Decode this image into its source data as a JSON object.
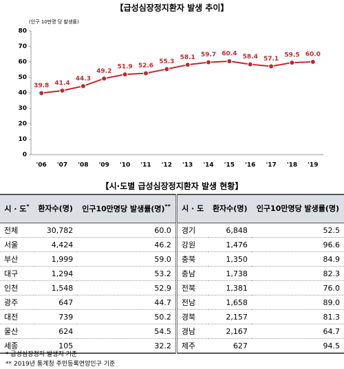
{
  "chart_data": {
    "type": "line",
    "title": "【급성심장정지환자 발생 추이】",
    "subtitle": "(인구 10만명 당 발생률)",
    "categories": [
      "'06",
      "'07",
      "'08",
      "'09",
      "'10",
      "'11",
      "'12",
      "'13",
      "'14",
      "'15",
      "'16",
      "'17",
      "'18",
      "'19"
    ],
    "values": [
      39.8,
      41.4,
      44.3,
      49.2,
      51.9,
      52.6,
      55.3,
      58.1,
      59.7,
      60.4,
      58.4,
      57.1,
      59.5,
      60.0
    ],
    "value_labels": [
      "39.8",
      "41.4",
      "44.3",
      "49.2",
      "51.9",
      "52.6",
      "55.3",
      "58.1",
      "59.7",
      "60.4",
      "58.4",
      "57.1",
      "59.5",
      "60.0"
    ],
    "color": "#c0282d",
    "ylim": [
      0,
      80
    ],
    "yticks": [
      0,
      10,
      20,
      30,
      40,
      50,
      60,
      70,
      80
    ]
  },
  "table": {
    "title": "【시·도별 급성심장정지환자 발생 현황】",
    "header": [
      {
        "text": "시 · 도",
        "sup": "*"
      },
      {
        "text": "환자수(명)",
        "sup": ""
      },
      {
        "text": "인구10만명당 발생률(명)",
        "sup": "**"
      },
      {
        "text": "시 · 도",
        "sup": ""
      },
      {
        "text": "환자수(명)",
        "sup": ""
      },
      {
        "text": "인구10만명당 발생률(명)",
        "sup": ""
      }
    ],
    "rows": [
      [
        "전체",
        "30,782",
        "60.0",
        "경기",
        "6,848",
        "52.5"
      ],
      [
        "서울",
        "4,424",
        "46.2",
        "강원",
        "1,476",
        "96.6"
      ],
      [
        "부산",
        "1,999",
        "59.0",
        "충북",
        "1,350",
        "84.9"
      ],
      [
        "대구",
        "1,294",
        "53.2",
        "충남",
        "1,738",
        "82.3"
      ],
      [
        "인천",
        "1,548",
        "52.9",
        "전북",
        "1,381",
        "76.0"
      ],
      [
        "광주",
        "647",
        "44.7",
        "전남",
        "1,658",
        "89.0"
      ],
      [
        "대전",
        "739",
        "50.2",
        "경북",
        "2,157",
        "81.3"
      ],
      [
        "울산",
        "624",
        "54.5",
        "경남",
        "2,167",
        "64.7"
      ],
      [
        "세종",
        "105",
        "32.2",
        "제주",
        "627",
        "94.5"
      ]
    ]
  },
  "footnotes": [
    "* 급성심장정지 발생지 기준",
    "** 2019년 통계청 주민등록연앙인구 기준"
  ]
}
